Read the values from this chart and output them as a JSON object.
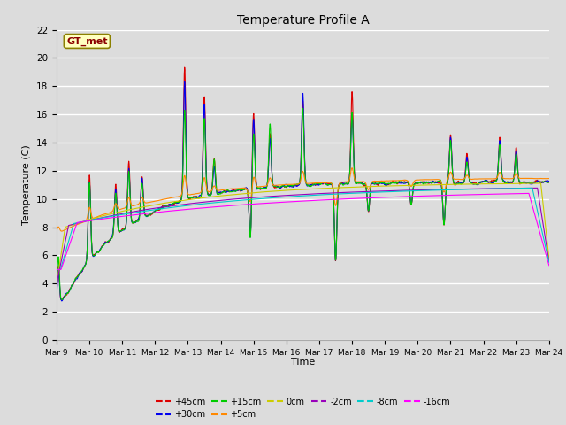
{
  "title": "Temperature Profile A",
  "xlabel": "Time",
  "ylabel": "Temperature (C)",
  "ylim": [
    0,
    22
  ],
  "xlim": [
    0,
    15
  ],
  "annotation": "GT_met",
  "bg_color": "#dcdcdc",
  "fig_bg": "#dcdcdc",
  "series_colors": {
    "+45cm": "#dd0000",
    "+30cm": "#0000ee",
    "+15cm": "#00cc00",
    "+5cm": "#ff8800",
    "0cm": "#cccc00",
    "-2cm": "#9900bb",
    "-8cm": "#00cccc",
    "-16cm": "#ff00ff"
  },
  "xtick_labels": [
    "Mar 9",
    "Mar 10",
    "Mar 11",
    "Mar 12",
    "Mar 13",
    "Mar 14",
    "Mar 15",
    "Mar 16",
    "Mar 17",
    "Mar 18",
    "Mar 19",
    "Mar 20",
    "Mar 21",
    "Mar 22",
    "Mar 23",
    "Mar 24"
  ],
  "ytick_values": [
    0,
    2,
    4,
    6,
    8,
    10,
    12,
    14,
    16,
    18,
    20,
    22
  ]
}
